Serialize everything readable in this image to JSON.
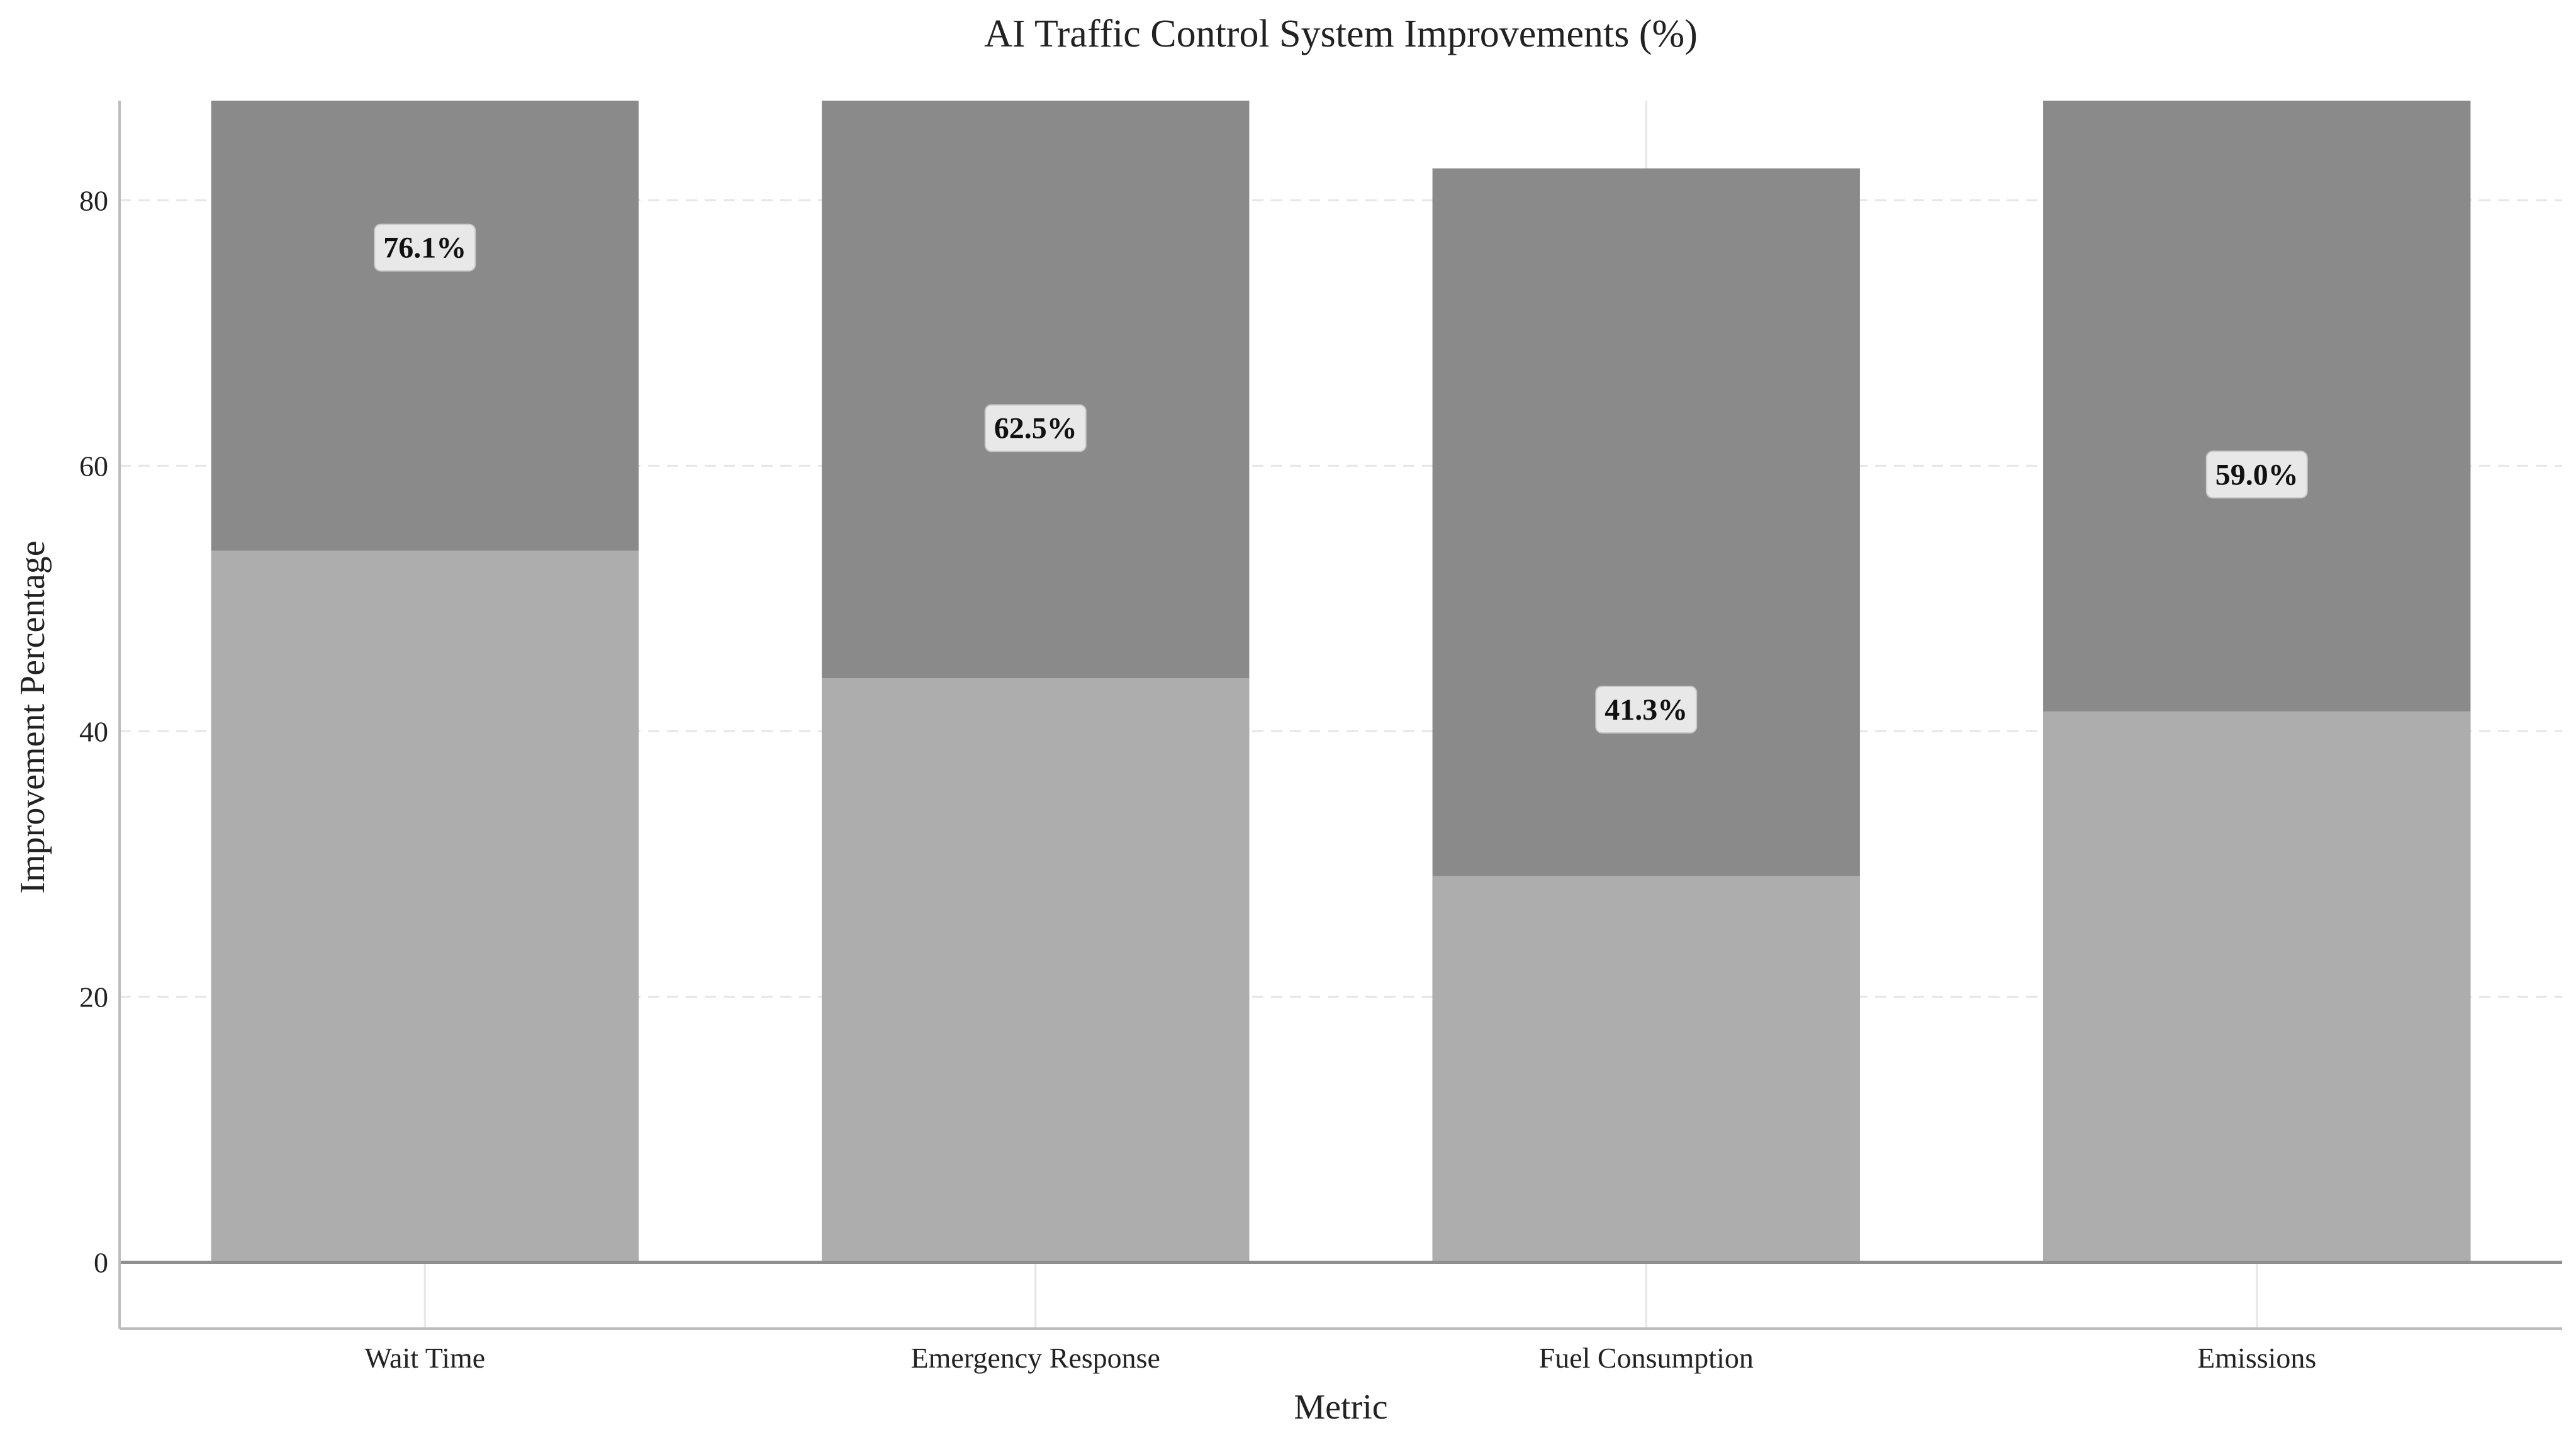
{
  "chart_data": {
    "type": "bar",
    "title": "AI Traffic Control System Improvements (%)",
    "xlabel": "Metric",
    "ylabel": "Improvement Percentage",
    "categories": [
      "Wait Time",
      "Emergency Response",
      "Fuel Consumption",
      "Emissions"
    ],
    "series": [
      {
        "values": [
          53.6,
          44.0,
          29.1,
          41.5
        ]
      },
      {
        "values": [
          87.5,
          87.5,
          82.4,
          87.5
        ]
      }
    ],
    "data_labels": [
      "76.1%",
      "62.5%",
      "41.3%",
      "59.0%"
    ],
    "label_values": [
      76.1,
      62.5,
      41.3,
      59.0
    ],
    "ylim": [
      -5,
      87.5
    ],
    "yticks": [
      0,
      20,
      40,
      60,
      80
    ],
    "grid": true,
    "colors": {
      "back_bar": "#8a8a8a",
      "front_bar": "#adadad",
      "grid": "#e6e6e6",
      "axis": "#bdbdbd",
      "zero_line": "#8f8f8f"
    }
  }
}
